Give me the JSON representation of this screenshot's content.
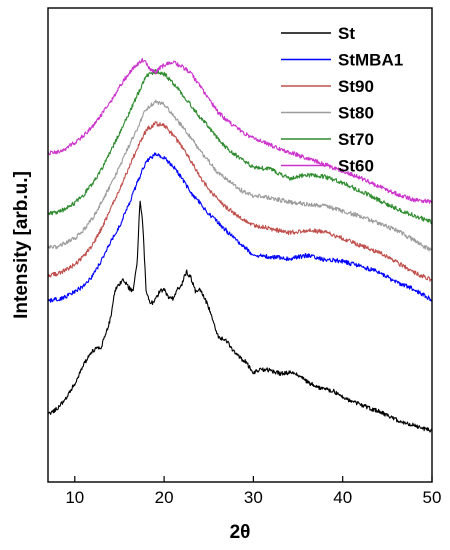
{
  "chart_data": {
    "type": "line",
    "xlabel": "2θ",
    "ylabel": "Intensity [arb.u.]",
    "xlim": [
      7,
      50
    ],
    "ylim": [
      0,
      100
    ],
    "xticks": [
      10,
      20,
      30,
      40,
      50
    ],
    "legend_placement": "top-right",
    "grid": false,
    "y_ticks_shown": false,
    "series": [
      {
        "name": "St",
        "color": "#000000",
        "x": [
          7,
          8,
          9,
          10,
          11,
          12,
          13,
          14,
          14.5,
          15,
          15.5,
          16,
          16.5,
          17,
          17.3,
          17.6,
          18,
          18.5,
          19,
          19.5,
          20,
          20.5,
          21,
          21.5,
          22,
          22.5,
          23,
          23.5,
          24,
          24.5,
          25,
          25.5,
          26,
          27,
          28,
          29,
          30,
          31,
          32,
          33,
          34,
          35,
          36,
          37,
          38,
          39,
          40,
          42,
          44,
          46,
          48,
          50
        ],
        "y": [
          14.2,
          15.5,
          17.6,
          20.8,
          24.8,
          27.6,
          28.6,
          34.5,
          40.4,
          41.8,
          42.6,
          41.1,
          40.1,
          46.6,
          59.7,
          54.6,
          40.1,
          37.6,
          38.3,
          40.2,
          40.6,
          39.1,
          38.7,
          40.6,
          41.8,
          44.4,
          43.1,
          40.3,
          40.5,
          38.9,
          36.8,
          33.9,
          30.8,
          29.8,
          26.9,
          25.6,
          23.1,
          23.8,
          23.5,
          22.9,
          23.1,
          22.6,
          21.2,
          20.1,
          19.7,
          19.1,
          17.8,
          16.3,
          14.9,
          13.1,
          11.9,
          10.7
        ]
      },
      {
        "name": "StMBA1",
        "color": "#0000ff",
        "x": [
          7,
          8,
          9,
          10,
          11,
          12,
          13,
          14,
          15,
          16,
          17,
          18,
          19,
          20,
          21,
          22,
          23,
          24,
          25,
          26,
          27,
          28,
          29,
          30,
          32,
          34,
          36,
          38,
          40,
          42,
          44,
          46,
          48,
          50
        ],
        "y": [
          38.2,
          38.5,
          39.1,
          40.1,
          41.4,
          43.5,
          46.8,
          50.6,
          53.9,
          58.3,
          63.2,
          67.7,
          69.1,
          68.5,
          66.6,
          64.1,
          61.0,
          58.9,
          56.6,
          54.8,
          53.0,
          51.1,
          49.6,
          47.8,
          47.5,
          47.1,
          47.8,
          46.9,
          46.6,
          45.5,
          44.3,
          42.1,
          40.7,
          38.4
        ]
      },
      {
        "name": "St90",
        "color": "#c0504d",
        "x": [
          7,
          8,
          9,
          10,
          11,
          12,
          13,
          14,
          15,
          16,
          17,
          18,
          19,
          20,
          21,
          22,
          23,
          24,
          25,
          26,
          27,
          28,
          29,
          30,
          32,
          34,
          36,
          38,
          40,
          42,
          44,
          46,
          48,
          50
        ],
        "y": [
          43.6,
          43.9,
          44.7,
          45.9,
          47.6,
          50.0,
          53.5,
          57.6,
          61.5,
          66.1,
          70.4,
          74.3,
          75.6,
          75.2,
          73.2,
          70.7,
          67.8,
          64.5,
          61.7,
          59.7,
          57.9,
          56.5,
          55.2,
          54.2,
          53.4,
          52.6,
          53.1,
          52.8,
          51.4,
          49.9,
          48.5,
          46.4,
          44.2,
          42.6
        ]
      },
      {
        "name": "St80",
        "color": "#9c9c9c",
        "x": [
          7,
          8,
          9,
          10,
          11,
          12,
          13,
          14,
          15,
          16,
          17,
          18,
          19,
          20,
          21,
          22,
          23,
          24,
          25,
          26,
          27,
          28,
          29,
          30,
          32,
          34,
          36,
          38,
          40,
          42,
          44,
          46,
          48,
          50
        ],
        "y": [
          49.4,
          49.6,
          50.5,
          51.4,
          53.2,
          55.7,
          59.0,
          62.6,
          66.3,
          70.7,
          74.6,
          78.8,
          80.2,
          79.6,
          77.4,
          75.1,
          72.6,
          69.9,
          67.6,
          65.3,
          63.8,
          62.4,
          61.1,
          60.4,
          59.9,
          59.1,
          58.6,
          58.3,
          57.1,
          56.1,
          54.6,
          53.1,
          51.0,
          48.7
        ]
      },
      {
        "name": "St70",
        "color": "#2e8b2e",
        "x": [
          7,
          8,
          9,
          10,
          11,
          12,
          13,
          14,
          15,
          16,
          17,
          18,
          19,
          20,
          21,
          22,
          23,
          24,
          25,
          26,
          27,
          28,
          29,
          30,
          32,
          34,
          36,
          38,
          40,
          42,
          44,
          46,
          48,
          50
        ],
        "y": [
          56.6,
          56.9,
          57.6,
          58.9,
          60.6,
          63.1,
          66.0,
          69.7,
          73.6,
          77.5,
          81.6,
          85.7,
          86.6,
          86.1,
          84.2,
          81.9,
          79.5,
          77.0,
          74.9,
          72.4,
          70.5,
          69.0,
          67.6,
          66.5,
          65.9,
          64.1,
          64.8,
          64.4,
          63.1,
          61.4,
          59.5,
          57.7,
          56.2,
          54.8
        ]
      },
      {
        "name": "St60",
        "color": "#cc33cc",
        "x": [
          7,
          8,
          9,
          10,
          11,
          12,
          13,
          14,
          15,
          16,
          17,
          17.5,
          18,
          18.5,
          19,
          20,
          21,
          22,
          23,
          24,
          25,
          26,
          27,
          28,
          29,
          30,
          32,
          34,
          36,
          38,
          40,
          42,
          44,
          46,
          48,
          50
        ],
        "y": [
          69.4,
          69.6,
          70.4,
          71.6,
          73.1,
          75.0,
          77.5,
          80.2,
          83.4,
          86.1,
          88.1,
          89.0,
          88.3,
          87.0,
          86.4,
          88.0,
          88.6,
          87.6,
          86.2,
          83.6,
          80.9,
          78.1,
          76.3,
          74.9,
          73.5,
          72.5,
          71.0,
          69.6,
          68.3,
          67.0,
          65.6,
          64.1,
          62.4,
          60.8,
          59.5,
          59.1
        ]
      }
    ]
  }
}
